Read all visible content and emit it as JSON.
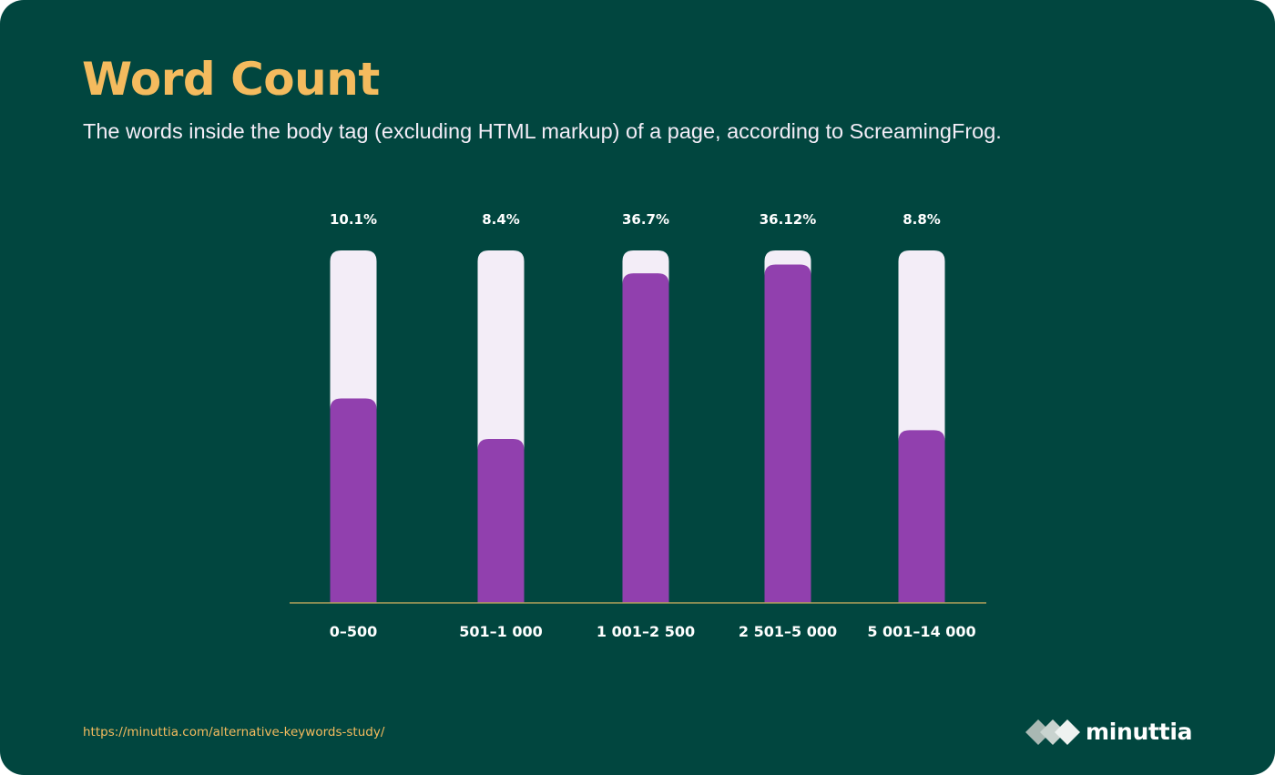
{
  "header": {
    "title": "Word Count",
    "subtitle": "The words inside the body tag (excluding HTML markup) of a page, according to ScreamingFrog."
  },
  "chart_data": {
    "type": "bar",
    "categories": [
      "0–500",
      "501–1 000",
      "1 001–2 500",
      "2 501–5 000",
      "5 001–14 000"
    ],
    "values": [
      10.1,
      8.4,
      36.7,
      36.12,
      8.8
    ],
    "value_labels": [
      "10.1%",
      "8.4%",
      "36.7%",
      "36.12%",
      "8.8%"
    ],
    "fill_fractions": [
      0.58,
      0.465,
      0.935,
      0.96,
      0.49
    ],
    "title": "Word Count",
    "xlabel": "",
    "ylabel": "",
    "grid": false,
    "legend": "none",
    "colors": {
      "bar": "#9140ae",
      "track": "#f3edf7",
      "baseline": "#b6a25c",
      "labels": "#ffffff"
    }
  },
  "footer": {
    "source_url": "https://minuttia.com/alternative-keywords-study/",
    "brand": "minuttia",
    "brand_icon": "diamond-chevron-icon"
  },
  "colors": {
    "background": "#01463f",
    "accent": "#f4bb5e",
    "subtitle": "#f3edf7"
  }
}
